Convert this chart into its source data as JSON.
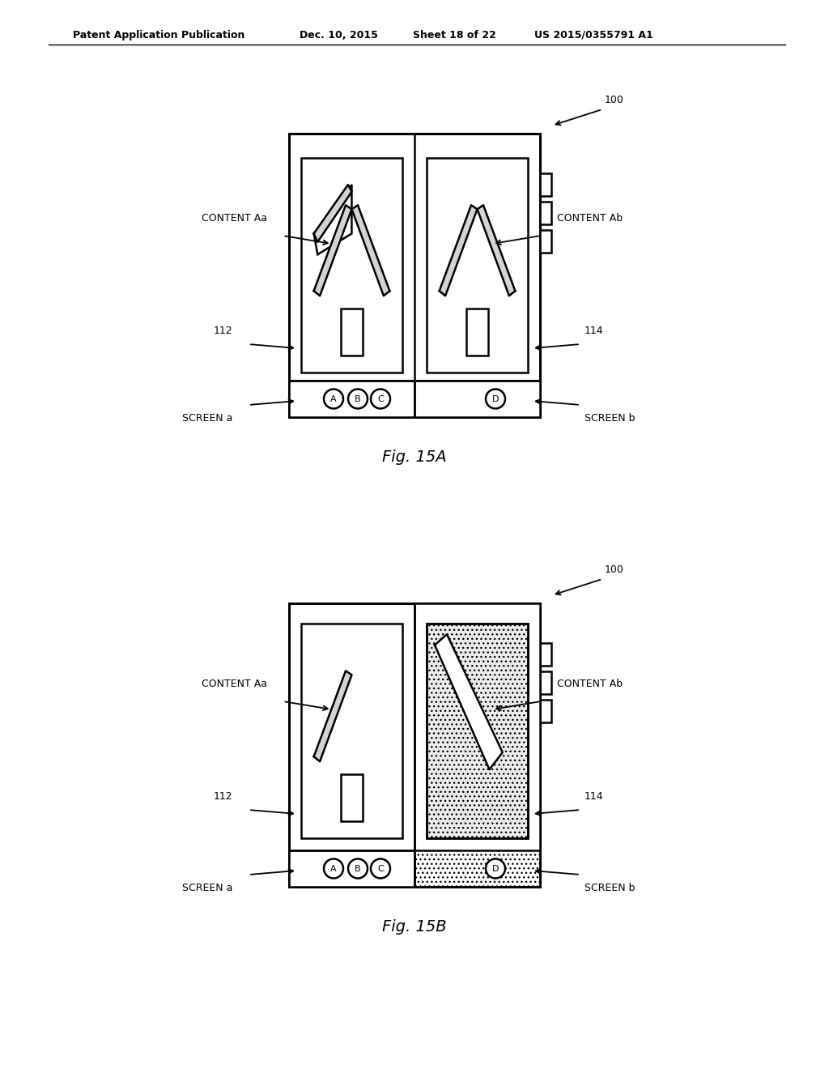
{
  "bg_color": "#ffffff",
  "line_color": "#000000",
  "header_text": "Patent Application Publication",
  "header_date": "Dec. 10, 2015",
  "header_sheet": "Sheet 18 of 22",
  "header_patent": "US 2015/0355791 A1",
  "fig_a_label": "Fig. 15A",
  "fig_b_label": "Fig. 15B",
  "label_100": "100",
  "label_112": "112",
  "label_114": "114",
  "label_content_aa": "CONTENT Aa",
  "label_content_ab": "CONTENT Ab",
  "label_screen_a": "SCREEN a",
  "label_screen_b": "SCREEN b",
  "dotted_fill_color": "#c8c8c8",
  "dotted_alpha": 0.5
}
